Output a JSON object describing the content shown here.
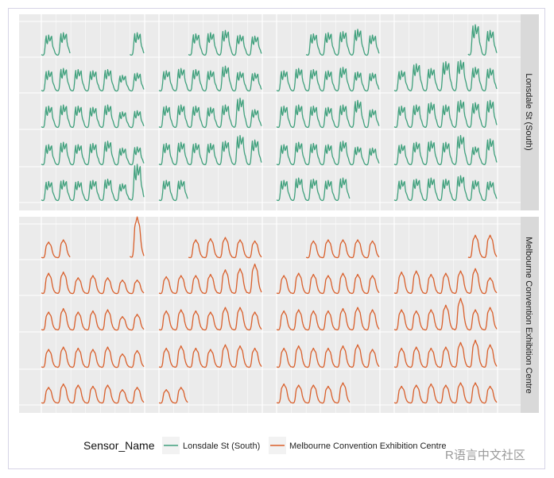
{
  "chart_data": {
    "type": "line",
    "title": "",
    "xlabel": "",
    "ylabel": "",
    "layout": "calendar: 4 month columns x 5 week rows x 7 day slots, hourly counts per day",
    "hourly_profile_note": "each day drawn as profile x day scale",
    "profiles": {
      "Lonsdale St (South)": [
        0.05,
        0.03,
        0.02,
        0.02,
        0.04,
        0.12,
        0.38,
        0.72,
        0.92,
        0.6,
        0.55,
        0.72,
        0.96,
        0.82,
        0.68,
        0.74,
        0.86,
        0.9,
        0.58,
        0.42,
        0.34,
        0.28,
        0.18,
        0.1
      ],
      "Melbourne Convention Exhibition Centre": [
        0.04,
        0.03,
        0.02,
        0.02,
        0.03,
        0.08,
        0.22,
        0.48,
        0.72,
        0.8,
        0.84,
        0.9,
        0.96,
        0.9,
        0.84,
        0.8,
        0.74,
        0.6,
        0.42,
        0.3,
        0.2,
        0.14,
        0.1,
        0.05
      ]
    },
    "series": [
      {
        "name": "Lonsdale St (South)",
        "color": "#3fa07c",
        "months": [
          [
            [
              0.9,
              1.0,
              null,
              null,
              null,
              null,
              1.0
            ],
            [
              0.9,
              1.0,
              0.95,
              0.9,
              0.95,
              0.7,
              0.8
            ],
            [
              0.95,
              1.0,
              0.95,
              0.9,
              1.0,
              0.7,
              0.75
            ],
            [
              0.9,
              1.0,
              0.9,
              0.95,
              1.05,
              0.75,
              0.8
            ],
            [
              0.85,
              0.9,
              0.85,
              0.9,
              0.95,
              0.75,
              1.6
            ]
          ],
          [
            [
              null,
              null,
              0.95,
              1.0,
              1.1,
              0.9,
              0.85
            ],
            [
              0.9,
              1.0,
              0.95,
              0.9,
              1.1,
              0.85,
              0.8
            ],
            [
              0.95,
              1.0,
              0.95,
              0.9,
              1.0,
              1.3,
              0.8
            ],
            [
              0.95,
              1.0,
              0.95,
              0.95,
              1.05,
              1.3,
              1.1
            ],
            [
              0.9,
              0.9,
              null,
              null,
              null,
              null,
              null
            ]
          ],
          [
            [
              null,
              null,
              0.95,
              1.0,
              1.05,
              1.15,
              0.9
            ],
            [
              0.9,
              1.0,
              0.95,
              0.9,
              1.05,
              0.85,
              0.8
            ],
            [
              0.95,
              1.0,
              0.95,
              0.9,
              1.0,
              1.2,
              0.8
            ],
            [
              0.9,
              1.0,
              0.95,
              0.9,
              1.05,
              0.8,
              0.75
            ],
            [
              0.9,
              1.0,
              0.95,
              0.9,
              1.0,
              null,
              null
            ]
          ],
          [
            [
              null,
              null,
              null,
              null,
              null,
              1.35,
              1.1
            ],
            [
              0.9,
              1.2,
              1.0,
              1.3,
              1.35,
              1.05,
              1.0
            ],
            [
              0.95,
              1.0,
              1.1,
              1.0,
              1.2,
              1.1,
              1.2
            ],
            [
              0.9,
              1.0,
              1.05,
              1.0,
              1.3,
              0.8,
              1.15
            ],
            [
              0.9,
              0.95,
              1.0,
              0.95,
              1.1,
              0.9,
              0.85
            ]
          ]
        ]
      },
      {
        "name": "Melbourne Convention Exhibition Centre",
        "color": "#d95f2b",
        "months": [
          [
            [
              0.7,
              0.8,
              null,
              null,
              null,
              null,
              1.8
            ],
            [
              0.9,
              0.95,
              0.7,
              0.8,
              0.7,
              0.6,
              0.6
            ],
            [
              0.8,
              0.95,
              0.8,
              0.85,
              0.9,
              0.6,
              0.7
            ],
            [
              0.8,
              0.9,
              0.85,
              0.8,
              0.9,
              0.6,
              0.75
            ],
            [
              0.7,
              0.85,
              0.8,
              0.75,
              0.8,
              0.6,
              0.7
            ]
          ],
          [
            [
              null,
              null,
              0.8,
              0.85,
              0.9,
              0.8,
              0.75
            ],
            [
              0.75,
              0.8,
              0.8,
              0.85,
              1.05,
              1.1,
              1.3
            ],
            [
              0.85,
              0.9,
              0.85,
              0.8,
              1.0,
              1.0,
              0.8
            ],
            [
              0.85,
              0.95,
              0.85,
              0.8,
              1.0,
              0.95,
              0.85
            ],
            [
              0.6,
              0.7,
              null,
              null,
              null,
              null,
              null
            ]
          ],
          [
            [
              null,
              null,
              0.75,
              0.8,
              0.8,
              0.8,
              0.75
            ],
            [
              0.8,
              0.9,
              0.85,
              0.8,
              0.9,
              0.85,
              0.8
            ],
            [
              0.85,
              0.9,
              0.85,
              0.85,
              0.95,
              1.0,
              0.9
            ],
            [
              0.85,
              0.95,
              0.85,
              0.85,
              0.95,
              1.0,
              0.8
            ],
            [
              0.85,
              0.8,
              0.8,
              0.75,
              0.9,
              null,
              null
            ]
          ],
          [
            [
              null,
              null,
              null,
              null,
              null,
              1.0,
              1.0
            ],
            [
              0.95,
              1.0,
              0.85,
              0.9,
              1.0,
              1.1,
              0.7
            ],
            [
              0.9,
              0.85,
              0.9,
              1.1,
              1.4,
              0.9,
              1.0
            ],
            [
              0.85,
              0.9,
              0.85,
              0.9,
              1.1,
              1.2,
              1.0
            ],
            [
              0.75,
              0.8,
              0.85,
              0.8,
              0.9,
              0.9,
              0.75
            ]
          ]
        ]
      }
    ],
    "facet_strips": [
      "Lonsdale St (South)",
      "Melbourne Convention Exhibition Centre"
    ],
    "legend": {
      "title": "Sensor_Name",
      "position": "bottom",
      "entries": [
        "Lonsdale St (South)",
        "Melbourne Convention Exhibition Centre"
      ]
    },
    "grid": true
  },
  "watermark": "R语言中文社区"
}
